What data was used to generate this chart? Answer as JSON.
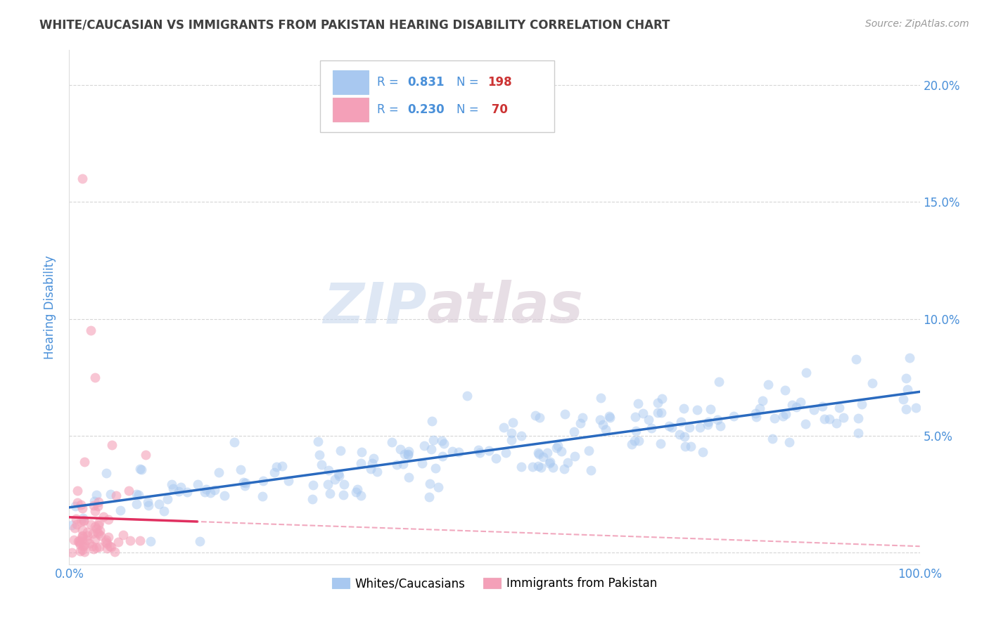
{
  "title": "WHITE/CAUCASIAN VS IMMIGRANTS FROM PAKISTAN HEARING DISABILITY CORRELATION CHART",
  "source": "Source: ZipAtlas.com",
  "ylabel": "Hearing Disability",
  "xlim": [
    0,
    1.0
  ],
  "ylim": [
    -0.005,
    0.215
  ],
  "yticks": [
    0.0,
    0.05,
    0.1,
    0.15,
    0.2
  ],
  "xticks": [
    0.0,
    0.25,
    0.5,
    0.75,
    1.0
  ],
  "xtick_labels": [
    "0.0%",
    "",
    "",
    "",
    "100.0%"
  ],
  "ytick_labels": [
    "",
    "5.0%",
    "10.0%",
    "15.0%",
    "20.0%"
  ],
  "blue_R": 0.831,
  "blue_N": 198,
  "pink_R": 0.23,
  "pink_N": 70,
  "blue_color": "#a8c8f0",
  "pink_color": "#f4a0b8",
  "blue_line_color": "#2a6abf",
  "pink_line_color": "#e03060",
  "dashed_line_color": "#f0a0b8",
  "watermark_zip": "ZIP",
  "watermark_atlas": "atlas",
  "legend_blue_label": "Whites/Caucasians",
  "legend_pink_label": "Immigrants from Pakistan",
  "background_color": "#ffffff",
  "title_color": "#404040",
  "axis_label_color": "#4a90d9",
  "tick_color": "#4a90d9",
  "grid_color": "#cccccc"
}
